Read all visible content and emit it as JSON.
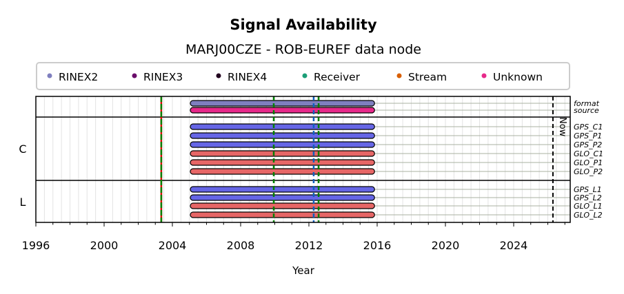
{
  "chart_data": {
    "type": "timeline",
    "title": "Signal Availability",
    "subtitle": "MARJ00CZE - ROB-EUREF data node",
    "xlabel": "Year",
    "xlim": [
      1996,
      2027.3
    ],
    "xticks": [
      1996,
      2000,
      2004,
      2008,
      2012,
      2016,
      2020,
      2024
    ],
    "legend": {
      "placement": "top",
      "entries": [
        {
          "label": "RINEX2",
          "color": "#7f7fbf"
        },
        {
          "label": "RINEX3",
          "color": "#6a0d6a"
        },
        {
          "label": "RINEX4",
          "color": "#22001f"
        },
        {
          "label": "Receiver",
          "color": "#1b9e77"
        },
        {
          "label": "Stream",
          "color": "#d95f02"
        },
        {
          "label": "Unknown",
          "color": "#e7298a"
        }
      ]
    },
    "groups": [
      {
        "label": "",
        "rows": [
          {
            "name": "format",
            "start": 2005.05,
            "end": 2015.85,
            "color": "#7f7fbf"
          },
          {
            "name": "source",
            "start": 2005.05,
            "end": 2015.85,
            "color": "#e7298a"
          }
        ]
      },
      {
        "label": "C",
        "rows": [
          {
            "name": "GPS_C1",
            "start": 2005.05,
            "end": 2015.85,
            "color": "#6666e6"
          },
          {
            "name": "GPS_P1",
            "start": 2005.05,
            "end": 2015.85,
            "color": "#6666e6"
          },
          {
            "name": "GPS_P2",
            "start": 2005.05,
            "end": 2015.85,
            "color": "#6666e6"
          },
          {
            "name": "GLO_C1",
            "start": 2005.05,
            "end": 2015.85,
            "color": "#e66666"
          },
          {
            "name": "GLO_P1",
            "start": 2005.05,
            "end": 2015.85,
            "color": "#e66666"
          },
          {
            "name": "GLO_P2",
            "start": 2005.05,
            "end": 2015.85,
            "color": "#e66666"
          }
        ]
      },
      {
        "label": "L",
        "rows": [
          {
            "name": "GPS_L1",
            "start": 2005.05,
            "end": 2015.85,
            "color": "#6666e6"
          },
          {
            "name": "GPS_L2",
            "start": 2005.05,
            "end": 2015.85,
            "color": "#6666e6"
          },
          {
            "name": "GLO_L1",
            "start": 2005.05,
            "end": 2015.85,
            "color": "#e66666"
          },
          {
            "name": "GLO_L2",
            "start": 2005.05,
            "end": 2015.85,
            "color": "#e66666"
          }
        ]
      }
    ],
    "events": [
      {
        "year": 2003.35,
        "color": "#008000",
        "color2": "#dd0000"
      },
      {
        "year": 2009.94,
        "color": "#008000"
      },
      {
        "year": 2012.28,
        "color": "#1060c0"
      },
      {
        "year": 2012.57,
        "color": "#008000"
      }
    ],
    "now": {
      "year": 2026.3,
      "label": "Now"
    }
  }
}
